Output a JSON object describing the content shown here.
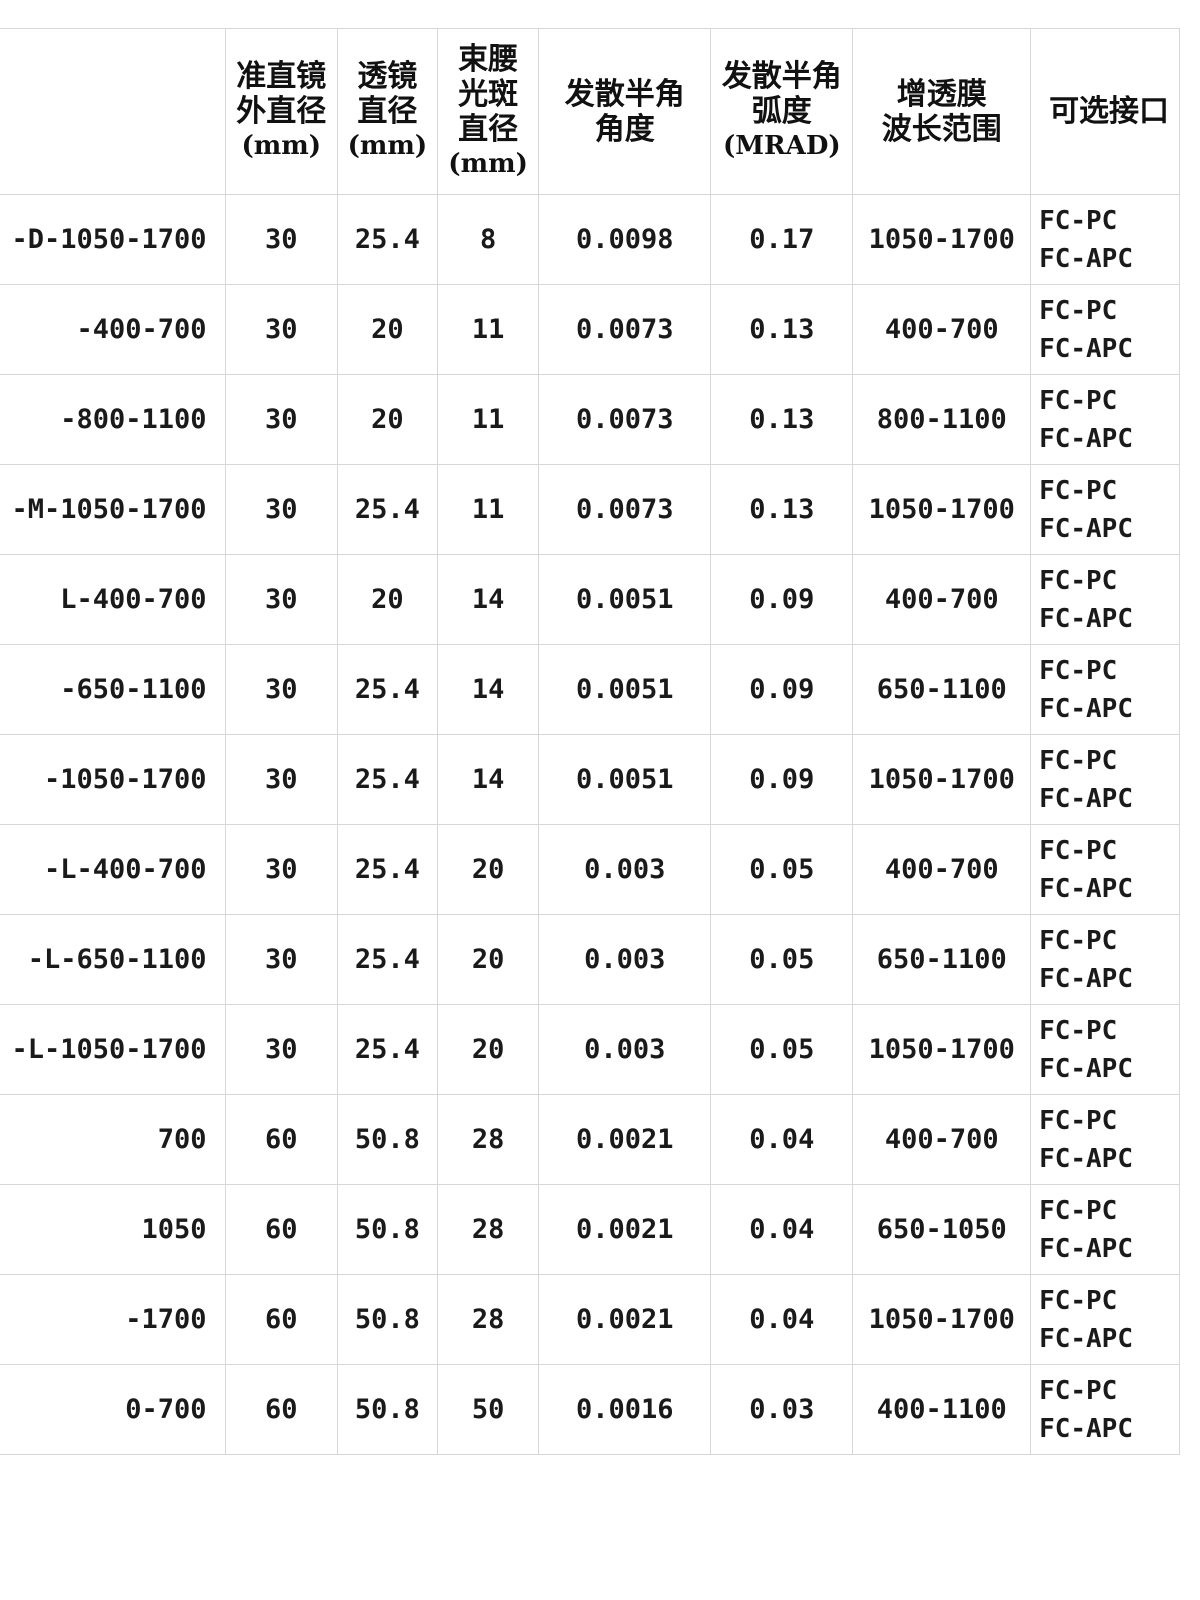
{
  "headers": {
    "model": "",
    "outer_diameter": [
      "准直镜",
      "外直径",
      "(mm)"
    ],
    "lens_diameter": [
      "透镜",
      "直径",
      "(mm)"
    ],
    "waist_diameter": [
      "束腰",
      "光斑",
      "直径",
      "(mm)"
    ],
    "half_angle_deg": [
      "发散半角",
      "角度"
    ],
    "half_angle_mrad": [
      "发散半角",
      "弧度",
      "(MRAD)"
    ],
    "ar_range": [
      "增透膜",
      "波长范围"
    ],
    "connector": "可选接口"
  },
  "rows": [
    {
      "model": "-D-1050-1700",
      "outer": "30",
      "lens": "25.4",
      "waist": "8",
      "deg": "0.0098",
      "mrad": "0.17",
      "ar": "1050-1700",
      "conn1": "FC-PC",
      "conn2": "FC-APC"
    },
    {
      "model": "-400-700",
      "outer": "30",
      "lens": "20",
      "waist": "11",
      "deg": "0.0073",
      "mrad": "0.13",
      "ar": "400-700",
      "conn1": "FC-PC",
      "conn2": "FC-APC"
    },
    {
      "model": "-800-1100",
      "outer": "30",
      "lens": "20",
      "waist": "11",
      "deg": "0.0073",
      "mrad": "0.13",
      "ar": "800-1100",
      "conn1": "FC-PC",
      "conn2": "FC-APC"
    },
    {
      "model": "-M-1050-1700",
      "outer": "30",
      "lens": "25.4",
      "waist": "11",
      "deg": "0.0073",
      "mrad": "0.13",
      "ar": "1050-1700",
      "conn1": "FC-PC",
      "conn2": "FC-APC"
    },
    {
      "model": "L-400-700",
      "outer": "30",
      "lens": "20",
      "waist": "14",
      "deg": "0.0051",
      "mrad": "0.09",
      "ar": "400-700",
      "conn1": "FC-PC",
      "conn2": "FC-APC"
    },
    {
      "model": "-650-1100",
      "outer": "30",
      "lens": "25.4",
      "waist": "14",
      "deg": "0.0051",
      "mrad": "0.09",
      "ar": "650-1100",
      "conn1": "FC-PC",
      "conn2": "FC-APC"
    },
    {
      "model": "-1050-1700",
      "outer": "30",
      "lens": "25.4",
      "waist": "14",
      "deg": "0.0051",
      "mrad": "0.09",
      "ar": "1050-1700",
      "conn1": "FC-PC",
      "conn2": "FC-APC"
    },
    {
      "model": "-L-400-700",
      "outer": "30",
      "lens": "25.4",
      "waist": "20",
      "deg": "0.003",
      "mrad": "0.05",
      "ar": "400-700",
      "conn1": "FC-PC",
      "conn2": "FC-APC"
    },
    {
      "model": "-L-650-1100",
      "outer": "30",
      "lens": "25.4",
      "waist": "20",
      "deg": "0.003",
      "mrad": "0.05",
      "ar": "650-1100",
      "conn1": "FC-PC",
      "conn2": "FC-APC"
    },
    {
      "model": "-L-1050-1700",
      "outer": "30",
      "lens": "25.4",
      "waist": "20",
      "deg": "0.003",
      "mrad": "0.05",
      "ar": "1050-1700",
      "conn1": "FC-PC",
      "conn2": "FC-APC"
    },
    {
      "model": "700",
      "outer": "60",
      "lens": "50.8",
      "waist": "28",
      "deg": "0.0021",
      "mrad": "0.04",
      "ar": "400-700",
      "conn1": "FC-PC",
      "conn2": "FC-APC"
    },
    {
      "model": "1050",
      "outer": "60",
      "lens": "50.8",
      "waist": "28",
      "deg": "0.0021",
      "mrad": "0.04",
      "ar": "650-1050",
      "conn1": "FC-PC",
      "conn2": "FC-APC"
    },
    {
      "model": "-1700",
      "outer": "60",
      "lens": "50.8",
      "waist": "28",
      "deg": "0.0021",
      "mrad": "0.04",
      "ar": "1050-1700",
      "conn1": "FC-PC",
      "conn2": "FC-APC"
    },
    {
      "model": "0-700",
      "outer": "60",
      "lens": "50.8",
      "waist": "50",
      "deg": "0.0016",
      "mrad": "0.03",
      "ar": "400-1100",
      "conn1": "FC-PC",
      "conn2": "FC-APC"
    }
  ]
}
